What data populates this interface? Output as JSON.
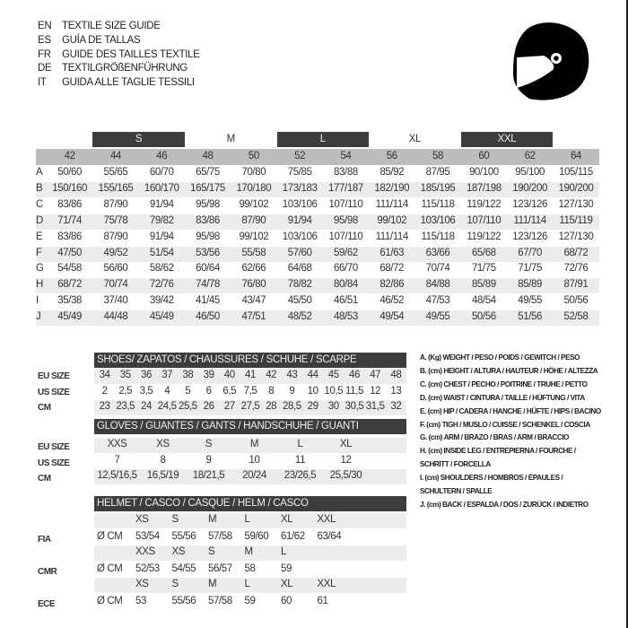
{
  "title_lines": [
    {
      "lang": "EN",
      "text": "TEXTILE SIZE GUIDE"
    },
    {
      "lang": "ES",
      "text": "GUÍA DE TALLAS"
    },
    {
      "lang": "FR",
      "text": "GUIDE DES TAILLES TEXTILE"
    },
    {
      "lang": "DE",
      "text": "TEXTILGRÖßENFÜHRUNG"
    },
    {
      "lang": "IT",
      "text": "GUIDA ALLE TAGLIE TESSILI"
    }
  ],
  "icon": "helmet-icon",
  "textile": {
    "letter_sizes": [
      {
        "label": "S",
        "span": [
          1,
          2
        ],
        "dark": true
      },
      {
        "label": "M",
        "span": [
          3,
          4
        ],
        "dark": false
      },
      {
        "label": "L",
        "span": [
          5,
          6
        ],
        "dark": true
      },
      {
        "label": "XL",
        "span": [
          7,
          8
        ],
        "dark": false
      },
      {
        "label": "XXL",
        "span": [
          9,
          10
        ],
        "dark": true
      }
    ],
    "eu_sizes": [
      "42",
      "44",
      "46",
      "48",
      "50",
      "52",
      "54",
      "56",
      "58",
      "60",
      "62",
      "64"
    ],
    "rows": [
      {
        "key": "A",
        "values": [
          "50/60",
          "55/65",
          "60/70",
          "65/75",
          "70/80",
          "75/85",
          "83/88",
          "85/92",
          "87/95",
          "90/100",
          "95/100",
          "105/115"
        ]
      },
      {
        "key": "B",
        "values": [
          "150/160",
          "155/165",
          "160/170",
          "165/175",
          "170/180",
          "173/183",
          "177/187",
          "182/190",
          "185/195",
          "187/198",
          "190/200",
          "190/200"
        ]
      },
      {
        "key": "C",
        "values": [
          "83/86",
          "87/90",
          "91/94",
          "95/98",
          "99/102",
          "103/106",
          "107/110",
          "111/114",
          "115/118",
          "119/122",
          "123/126",
          "127/130"
        ]
      },
      {
        "key": "D",
        "values": [
          "71/74",
          "75/78",
          "79/82",
          "83/86",
          "87/90",
          "91/94",
          "95/98",
          "99/102",
          "103/106",
          "107/110",
          "111/114",
          "115/119"
        ]
      },
      {
        "key": "E",
        "values": [
          "83/86",
          "87/90",
          "91/94",
          "95/98",
          "99/102",
          "103/106",
          "107/110",
          "111/114",
          "115/118",
          "119/122",
          "123/126",
          "127/130"
        ]
      },
      {
        "key": "F",
        "values": [
          "47/50",
          "49/52",
          "51/54",
          "53/56",
          "55/58",
          "57/60",
          "59/62",
          "61/63",
          "63/66",
          "65/68",
          "67/70",
          "68/72"
        ]
      },
      {
        "key": "G",
        "values": [
          "54/58",
          "56/60",
          "58/62",
          "60/64",
          "62/66",
          "64/68",
          "66/70",
          "68/72",
          "70/74",
          "71/75",
          "71/75",
          "72/76"
        ]
      },
      {
        "key": "H",
        "values": [
          "68/72",
          "70/74",
          "72/76",
          "74/78",
          "76/80",
          "78/82",
          "80/84",
          "82/86",
          "84/88",
          "85/89",
          "85/89",
          "87/91"
        ]
      },
      {
        "key": "I",
        "values": [
          "35/38",
          "37/40",
          "39/42",
          "41/45",
          "43/47",
          "45/50",
          "46/51",
          "46/52",
          "47/53",
          "48/54",
          "49/55",
          "50/56"
        ]
      },
      {
        "key": "J",
        "values": [
          "45/49",
          "44/48",
          "45/49",
          "46/50",
          "47/51",
          "48/52",
          "48/53",
          "49/54",
          "49/55",
          "50/56",
          "51/56",
          "52/58"
        ]
      }
    ]
  },
  "shoes": {
    "header": "SHOES/ ZAPATOS / CHAUSSURES / SCHUHE / SCARPE",
    "rows": [
      {
        "label": "EU SIZE",
        "values": [
          "34",
          "35",
          "36",
          "37",
          "38",
          "39",
          "40",
          "41",
          "42",
          "43",
          "44",
          "45",
          "46",
          "47",
          "48"
        ]
      },
      {
        "label": "US SIZE",
        "values": [
          "2",
          "2,5",
          "3,5",
          "4",
          "5",
          "6",
          "6,5",
          "7,5",
          "8",
          "9",
          "10",
          "10,5",
          "11,5",
          "12",
          "13"
        ]
      },
      {
        "label": "CM",
        "values": [
          "23",
          "23,5",
          "24",
          "24,5",
          "25,5",
          "26",
          "27",
          "27,5",
          "28",
          "28,5",
          "29",
          "30",
          "30,5",
          "31,5",
          "32"
        ]
      }
    ]
  },
  "gloves": {
    "header": "GLOVES / GUANTES / GANTS / HANDSCHUHE / GUANTI",
    "rows": [
      {
        "label": "EU SIZE",
        "values": [
          "XXS",
          "XS",
          "S",
          "M",
          "L",
          "XL"
        ]
      },
      {
        "label": "US SIZE",
        "values": [
          "7",
          "8",
          "9",
          "10",
          "11",
          "12"
        ]
      },
      {
        "label": "CM",
        "values": [
          "12,5/16,5",
          "16,5/19",
          "18/21,5",
          "20/24",
          "23/26,5",
          "25,5/30"
        ]
      }
    ]
  },
  "helmet": {
    "header": "HELMET / CASCO / CASQUE / HELM / CASCO",
    "unit": "Ø CM",
    "standards": [
      {
        "label": "FIA",
        "sizes": [
          "XS",
          "S",
          "M",
          "L",
          "XL",
          "XXL"
        ],
        "values": [
          "53/54",
          "55/56",
          "57/58",
          "59/60",
          "61/62",
          "63/64"
        ]
      },
      {
        "label": "CMR",
        "sizes": [
          "XXS",
          "XS",
          "S",
          "M",
          "L"
        ],
        "values": [
          "52/53",
          "54/55",
          "56/57",
          "58",
          "59"
        ]
      },
      {
        "label": "ECE",
        "sizes": [
          "XS",
          "S",
          "M",
          "L",
          "XL",
          "XXL"
        ],
        "values": [
          "53",
          "55/56",
          "57/58",
          "59",
          "60",
          "61"
        ]
      }
    ]
  },
  "legend": [
    "A. (Kg) WEIGHT / PESO / POIDS / GEWITCH / PESO",
    "B. (cm) HEIGHT / ALTURA / HAUTEUR / HÖHE / ALTEZZA",
    "C. (cm) CHEST / PECHO / POITRINE / TRUHE / PETTO",
    "D. (cm) WAIST / CINTURA / TAILLE / HÜFTUNG / VITA",
    "E. (cm) HIP / CADERA / HANCHE / HÜFTE / HIPS /  BACINO",
    "F. (cm) TIGH / MUSLO / CUISSE / SCHENKEL / COSCIA",
    "G. (cm) ARM  / BRAZO / BRAS / ARM / BRACCIO",
    "H. (cm) INSIDE LEG / ENTREPIERNA / FOURCHE /",
    "SCHRITT / FORCELLA",
    "I. (cm) SHOULDERS / HOMBROS / ÉPAULES /",
    "SCHULTERN / SPALLE",
    "J. (cm) BACK / ESPALDA / DOS / ZURÜCK / INDIETRO"
  ]
}
